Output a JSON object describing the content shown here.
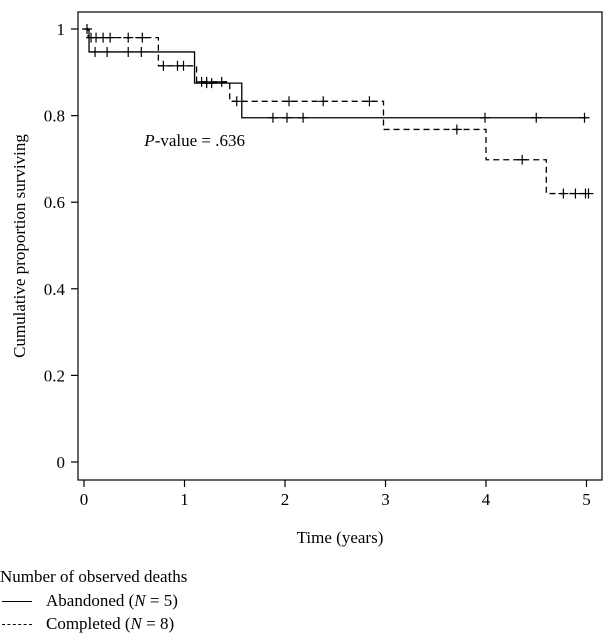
{
  "chart_data": {
    "type": "line",
    "step": true,
    "xlabel": "Time (years)",
    "ylabel": "Cumulative proportion surviving",
    "xlim": [
      0,
      5.1
    ],
    "ylim": [
      0,
      1
    ],
    "x_ticks": [
      "0",
      "1",
      "2",
      "3",
      "4",
      "5"
    ],
    "y_ticks": [
      "0",
      "0.2",
      "0.4",
      "0.6",
      "0.8",
      "1"
    ],
    "annotation": {
      "p_label": "P",
      "p_value": "-value = .636",
      "x": 0.6,
      "y": 0.73
    },
    "grid": false,
    "series": [
      {
        "name": "Abandoned",
        "line_style": "solid",
        "steps": [
          [
            0,
            1.0
          ],
          [
            0.05,
            0.947
          ],
          [
            1.1,
            0.875
          ],
          [
            1.57,
            0.795
          ]
        ],
        "end_x": 5.0,
        "censored": [
          [
            0.03,
            1.0
          ],
          [
            0.11,
            0.947
          ],
          [
            0.23,
            0.947
          ],
          [
            0.44,
            0.947
          ],
          [
            0.57,
            0.947
          ],
          [
            1.22,
            0.875
          ],
          [
            1.27,
            0.875
          ],
          [
            1.88,
            0.795
          ],
          [
            2.02,
            0.795
          ],
          [
            2.18,
            0.795
          ],
          [
            3.99,
            0.795
          ],
          [
            4.5,
            0.795
          ],
          [
            4.98,
            0.795
          ]
        ]
      },
      {
        "name": "Completed",
        "line_style": "dashed",
        "steps": [
          [
            0,
            1.0
          ],
          [
            0.04,
            0.98
          ],
          [
            0.74,
            0.915
          ],
          [
            1.12,
            0.878
          ],
          [
            1.45,
            0.833
          ],
          [
            2.98,
            0.768
          ],
          [
            4.0,
            0.698
          ],
          [
            4.6,
            0.62
          ]
        ],
        "end_x": 5.0,
        "censored": [
          [
            0.07,
            0.98
          ],
          [
            0.12,
            0.98
          ],
          [
            0.19,
            0.98
          ],
          [
            0.26,
            0.98
          ],
          [
            0.44,
            0.98
          ],
          [
            0.58,
            0.98
          ],
          [
            0.79,
            0.915
          ],
          [
            0.93,
            0.915
          ],
          [
            0.99,
            0.915
          ],
          [
            1.17,
            0.878
          ],
          [
            1.22,
            0.878
          ],
          [
            1.37,
            0.878
          ],
          [
            1.52,
            0.833
          ],
          [
            2.04,
            0.833
          ],
          [
            2.38,
            0.833
          ],
          [
            2.84,
            0.833
          ],
          [
            3.71,
            0.768
          ],
          [
            4.36,
            0.698
          ],
          [
            4.77,
            0.62
          ],
          [
            4.89,
            0.62
          ],
          [
            4.99,
            0.62
          ],
          [
            5.02,
            0.62
          ]
        ]
      }
    ]
  },
  "legend": {
    "title": "Number of observed deaths",
    "items": [
      {
        "label": "Abandoned (",
        "n_label": "N",
        "n_value": " = 5)",
        "style": "solid"
      },
      {
        "label": "Completed (",
        "n_label": "N",
        "n_value": " = 8)",
        "style": "dashed"
      }
    ]
  }
}
